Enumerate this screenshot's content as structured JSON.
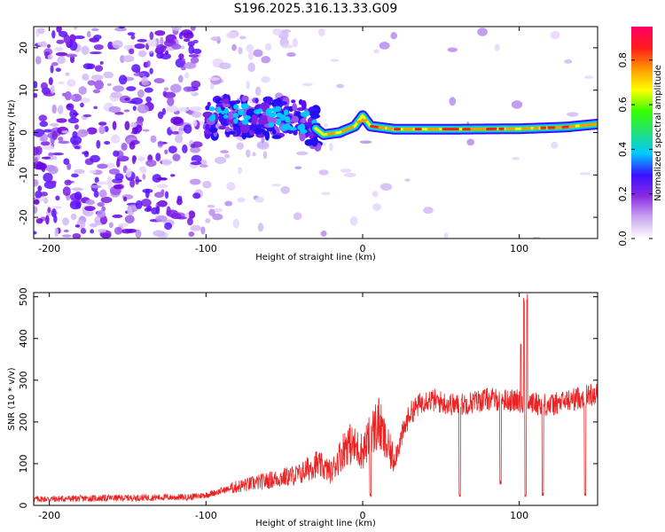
{
  "title": "S196.2025.316.13.33.G09",
  "chart_data": [
    {
      "type": "heatmap",
      "xlabel": "Height of straight line (km)",
      "ylabel": "Frequency (Hz)",
      "xlim": [
        -210,
        150
      ],
      "ylim": [
        -25,
        25
      ],
      "xticks": [
        -200,
        -100,
        0,
        100
      ],
      "xtick_labels": [
        "-200",
        "-100",
        "0",
        "100"
      ],
      "yticks": [
        -20,
        -10,
        0,
        10,
        20
      ],
      "ytick_labels": [
        "-20",
        "-10",
        "0",
        "10",
        "20"
      ],
      "colorbar": {
        "label": "Normalized spectral amplitude",
        "range": [
          0.0,
          0.95
        ],
        "ticks": [
          0.0,
          0.2,
          0.4,
          0.6,
          0.8
        ],
        "tick_labels": [
          "0.0",
          "0.2",
          "0.4",
          "0.6",
          "0.8"
        ],
        "colors": [
          "#ffffff",
          "#c9a6f2",
          "#8a2be2",
          "#3a10ff",
          "#00c8ff",
          "#22e07a",
          "#34ff00",
          "#ffff00",
          "#ff9900",
          "#ff1a1a",
          "#ff0066"
        ]
      },
      "ridge": [
        {
          "x": -100,
          "y": 3.5
        },
        {
          "x": -85,
          "y": 4
        },
        {
          "x": -60,
          "y": 3.5
        },
        {
          "x": -40,
          "y": 3
        },
        {
          "x": -30,
          "y": 1
        },
        {
          "x": -25,
          "y": -0.5
        },
        {
          "x": -15,
          "y": 0
        },
        {
          "x": -5,
          "y": 1.5
        },
        {
          "x": 0,
          "y": 4
        },
        {
          "x": 5,
          "y": 1.5
        },
        {
          "x": 20,
          "y": 0.8
        },
        {
          "x": 60,
          "y": 0.8
        },
        {
          "x": 100,
          "y": 0.9
        },
        {
          "x": 130,
          "y": 1.3
        },
        {
          "x": 150,
          "y": 2
        }
      ]
    },
    {
      "type": "line",
      "xlabel": "Height of straight line (km)",
      "ylabel": "SNR (10 * v/v)",
      "xlim": [
        -210,
        150
      ],
      "ylim": [
        0,
        510
      ],
      "xticks": [
        -200,
        -100,
        0,
        100
      ],
      "xtick_labels": [
        "-200",
        "-100",
        "0",
        "100"
      ],
      "yticks": [
        0,
        100,
        200,
        300,
        400,
        500
      ],
      "ytick_labels": [
        "0",
        "100",
        "200",
        "300",
        "400",
        "500"
      ],
      "color": "#ee2222",
      "trend": {
        "x": [
          -210,
          -150,
          -110,
          -100,
          -80,
          -60,
          -40,
          -30,
          -20,
          -10,
          0,
          10,
          15,
          20,
          30,
          40,
          60,
          80,
          100,
          120,
          150
        ],
        "y": [
          15,
          18,
          20,
          25,
          45,
          60,
          75,
          100,
          80,
          150,
          130,
          200,
          145,
          110,
          220,
          255,
          240,
          255,
          250,
          240,
          270
        ]
      },
      "dips": [
        {
          "x": 5,
          "y": 20
        },
        {
          "x": 62,
          "y": 20
        },
        {
          "x": 88,
          "y": 50
        },
        {
          "x": 104,
          "y": 20
        },
        {
          "x": 115,
          "y": 20
        },
        {
          "x": 142,
          "y": 20
        }
      ],
      "spikes": [
        {
          "x": 103,
          "y": 500
        },
        {
          "x": 105,
          "y": 510
        },
        {
          "x": 101,
          "y": 390
        }
      ]
    }
  ]
}
